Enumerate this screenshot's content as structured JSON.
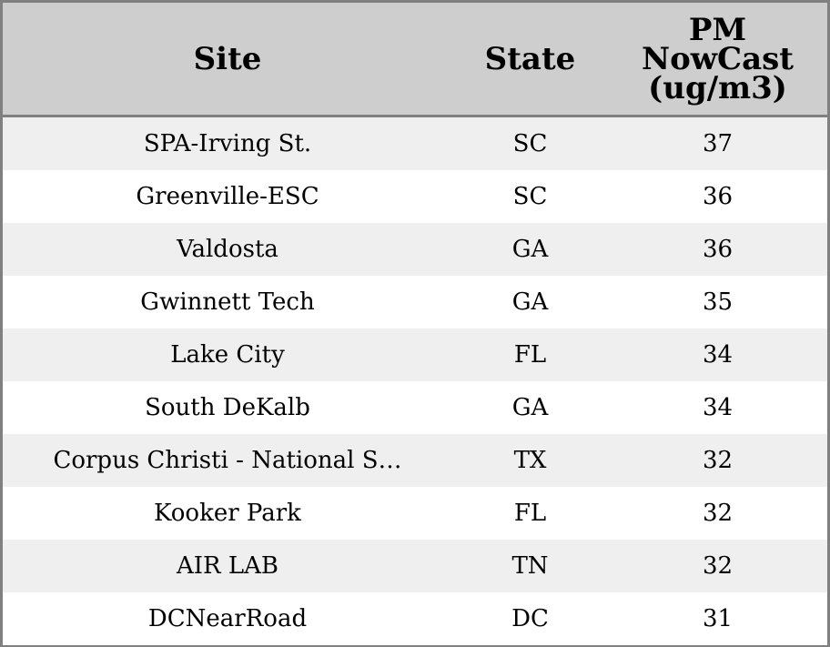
{
  "table": {
    "headers": {
      "site": "Site",
      "state": "State",
      "pm": "PM\nNowCast\n(ug/m3)"
    },
    "rows": [
      {
        "site": "SPA-Irving St.",
        "state": "SC",
        "pm": "37"
      },
      {
        "site": "Greenville-ESC",
        "state": "SC",
        "pm": "36"
      },
      {
        "site": "Valdosta",
        "state": "GA",
        "pm": "36"
      },
      {
        "site": "Gwinnett Tech",
        "state": "GA",
        "pm": "35"
      },
      {
        "site": "Lake City",
        "state": "FL",
        "pm": "34"
      },
      {
        "site": "South DeKalb",
        "state": "GA",
        "pm": "34"
      },
      {
        "site": "Corpus Christi - National S…",
        "state": "TX",
        "pm": "32"
      },
      {
        "site": "Kooker Park",
        "state": "FL",
        "pm": "32"
      },
      {
        "site": "AIR LAB",
        "state": "TN",
        "pm": "32"
      },
      {
        "site": "DCNearRoad",
        "state": "DC",
        "pm": "31"
      }
    ]
  }
}
